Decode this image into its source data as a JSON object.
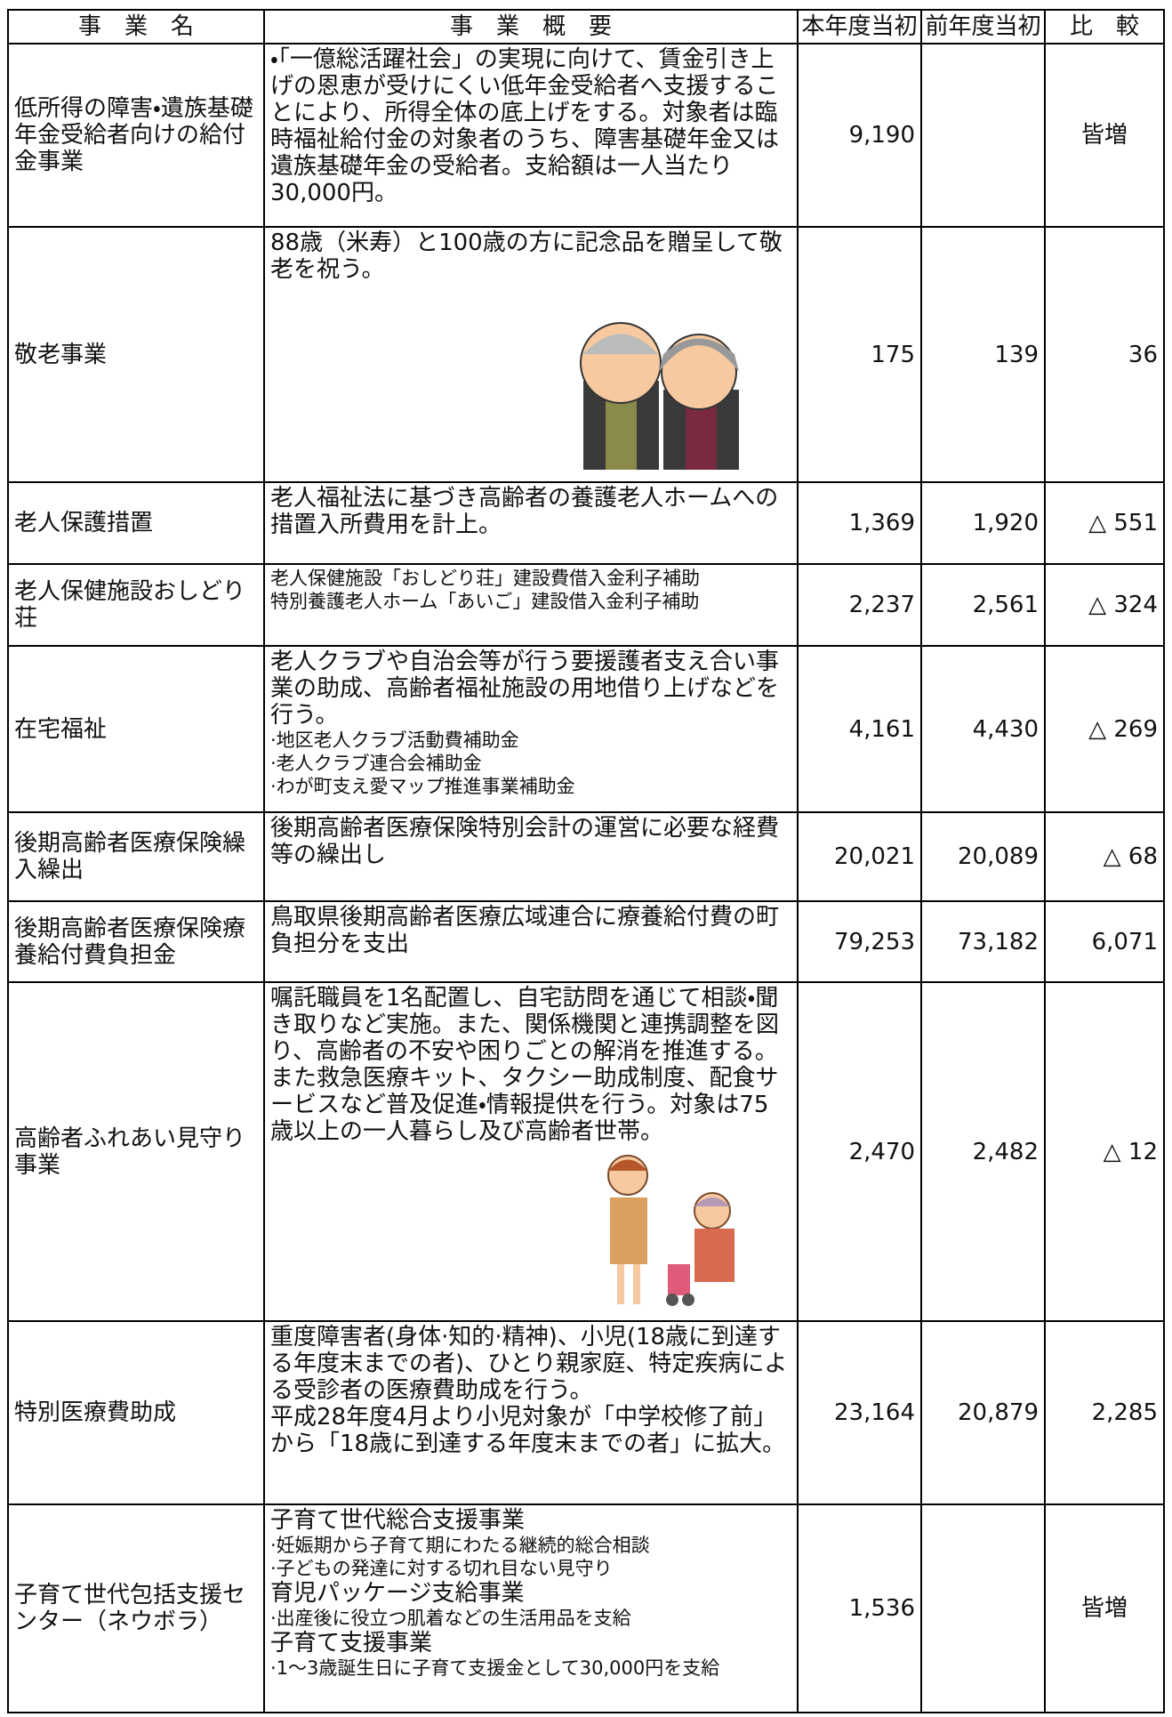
{
  "table": {
    "header": [
      "事　業　名",
      "事　業　概　要",
      "本年度当初",
      "前年度当初",
      "比　較"
    ],
    "rows": [
      {
        "name": "低所得の障害・遺族基礎年金受給者向けの給付金事業",
        "description": [
          "・「一億総活躍社会」の実現に向けて、賃金引き上げの恩恵が受けにくい低年金受給者へ支援することにより、所得全体の底上げをする。対象者は臨時福祉給付金の対象者のうち、障害基礎年金又は遺族基礎年金の受給者。支給額は一人当たり30,000円。"
        ],
        "current": "9,190",
        "previous": null,
        "comparison": "皆増"
      },
      {
        "name": "敬老事業",
        "description": [
          "88歳（米寿）と100歳の方に記念品を贈呈して敬老を祝う。"
        ],
        "current": "175",
        "previous": "139",
        "comparison": "36"
      },
      {
        "name": "老人保護措置",
        "description": [
          "老人福祉法に基づき高齢者の養護老人ホームへの措置入所費用を計上。"
        ],
        "current": "1,369",
        "previous": "1,920",
        "comparison": "△ 551"
      },
      {
        "name": "老人保健施設おしどり荘",
        "description": [
          "老人保健施設「おしどり荘」建設費借入金利子補助",
          "特別養護老人ホーム「あいご」建設借入金利子補助"
        ],
        "current": "2,237",
        "previous": "2,561",
        "comparison": "△ 324"
      },
      {
        "name": "在宅福祉",
        "description": [
          "老人クラブや自治会等が行う要援護者支え合い事業の助成、高齢者福祉施設の用地借り上げなどを行う。",
          "·地区老人クラブ活動費補助金",
          "·老人クラブ連合会補助金",
          "·わが町支え愛マップ推進事業補助金"
        ],
        "current": "4,161",
        "previous": "4,430",
        "comparison": "△ 269"
      },
      {
        "name": "後期高齢者医療保険繰入繰出",
        "description": [
          "後期高齢者医療保険特別会計の運営に必要な経費等の繰出し"
        ],
        "current": "20,021",
        "previous": "20,089",
        "comparison": "△ 68"
      },
      {
        "name": "後期高齢者医療保険療養給付費負担金",
        "description": [
          "鳥取県後期高齢者医療広域連合に療養給付費の町負担分を支出"
        ],
        "current": "79,253",
        "previous": "73,182",
        "comparison": "6,071"
      },
      {
        "name": "高齢者ふれあい見守り事業",
        "description": [
          "嘱託職員を1名配置し、自宅訪問を通じて相談・聞き取りなど実施。また、関係機関と連携調整を図り、高齢者の不安や困りごとの解消を推進する。また救急医療キット、タクシー助成制度、配食サービスなど普及促進・情報提供を行う。対象は75歳以上の一人暮らし及び高齢者世帯。"
        ],
        "current": "2,470",
        "previous": "2,482",
        "comparison": "△ 12"
      },
      {
        "name": "特別医療費助成",
        "description": [
          "重度障害者(身体·知的·精神)、小児(18歳に到達する年度末までの者)、ひとり親家庭、特定疾病による受診者の医療費助成を行う。",
          "平成28年度4月より小児対象が「中学校修了前」から「18歳に到達する年度末までの者」に拡大。"
        ],
        "current": "23,164",
        "previous": "20,879",
        "comparison": "2,285"
      },
      {
        "name": "子育て世代包括支援センター（ネウボラ）",
        "description": [
          "子育て世代総合支援事業",
          "·妊娠期から子育て期にわたる継続的総合相談",
          "·子どもの発達に対する切れ目ない見守り",
          "育児パッケージ支給事業",
          "·出産後に役立つ肌着などの生活用品を支給",
          "子育て支援事業",
          "·1～3歳誕生日に子育て支援金として30,000円を支給"
        ],
        "current": "1,536",
        "previous": null,
        "comparison": "皆増"
      }
    ]
  }
}
